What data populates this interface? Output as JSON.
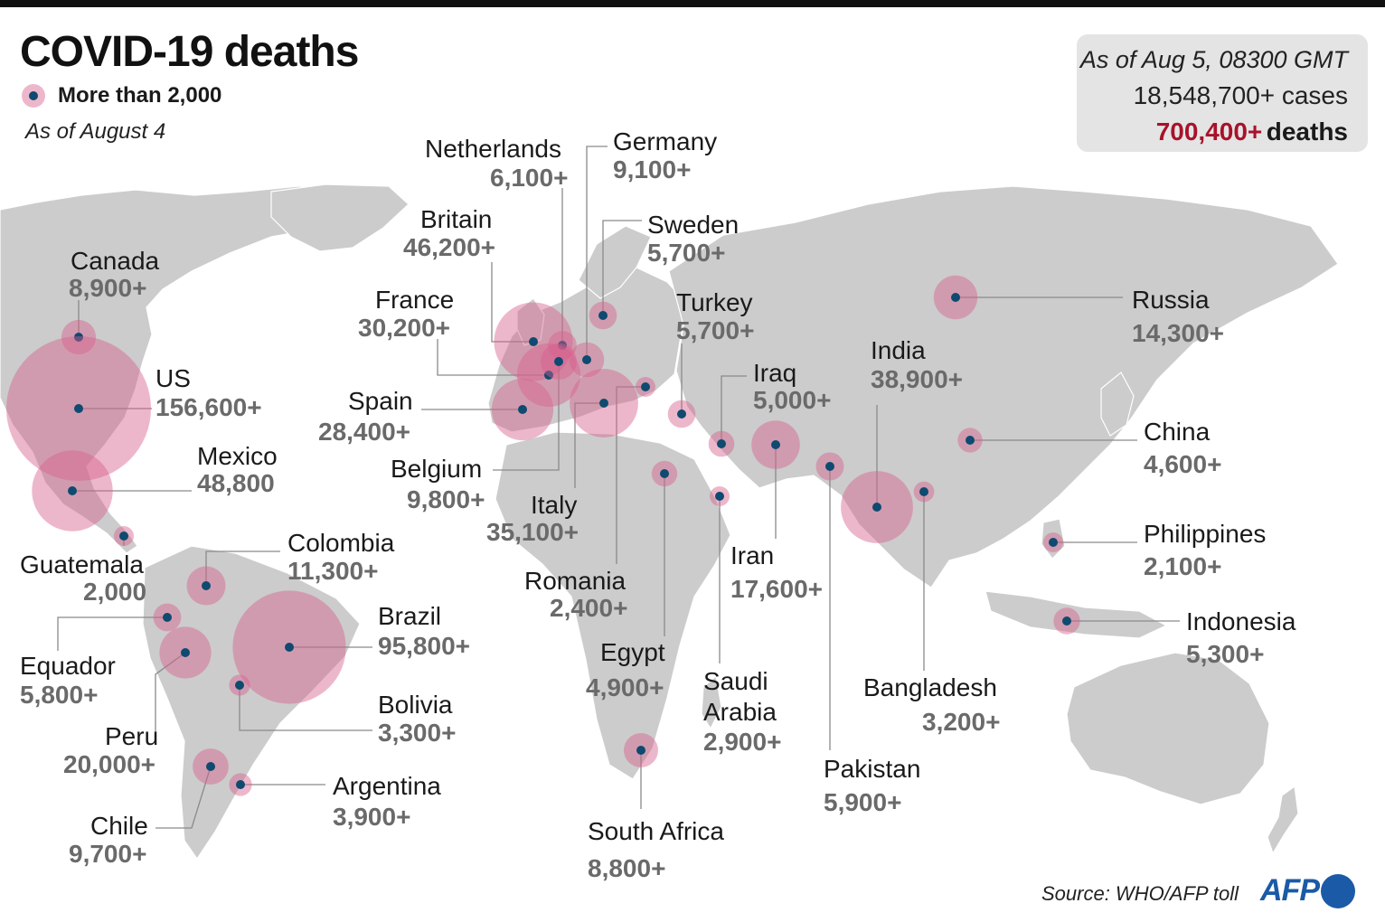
{
  "title": "COVID-19 deaths",
  "legend": {
    "label": "More than 2,000"
  },
  "as_of": "As of August 4",
  "totals": {
    "as_of": "As of Aug 5, 08300 GMT",
    "cases": "18,548,700+ cases",
    "deaths_number": "700,400+",
    "deaths_word": "deaths"
  },
  "source": "Source: WHO/AFP toll",
  "logo_text": "AFP",
  "colors": {
    "bubble": "#d8608c",
    "dot": "#0f4a70",
    "land": "#cccccc",
    "deaths_highlight": "#a8122a",
    "value_text": "#6a6a6a",
    "logo": "#1b5aa6"
  },
  "countries": [
    {
      "id": "canada",
      "name": "Canada",
      "deaths": "8,900+",
      "deaths_count": 8900
    },
    {
      "id": "us",
      "name": "US",
      "deaths": "156,600+",
      "deaths_count": 156600
    },
    {
      "id": "mexico",
      "name": "Mexico",
      "deaths": "48,800",
      "deaths_count": 48800
    },
    {
      "id": "guatemala",
      "name": "Guatemala",
      "deaths": "2,000",
      "deaths_count": 2000
    },
    {
      "id": "colombia",
      "name": "Colombia",
      "deaths": "11,300+",
      "deaths_count": 11300
    },
    {
      "id": "equador",
      "name": "Equador",
      "deaths": "5,800+",
      "deaths_count": 5800
    },
    {
      "id": "brazil",
      "name": "Brazil",
      "deaths": "95,800+",
      "deaths_count": 95800
    },
    {
      "id": "peru",
      "name": "Peru",
      "deaths": "20,000+",
      "deaths_count": 20000
    },
    {
      "id": "bolivia",
      "name": "Bolivia",
      "deaths": "3,300+",
      "deaths_count": 3300
    },
    {
      "id": "chile",
      "name": "Chile",
      "deaths": "9,700+",
      "deaths_count": 9700
    },
    {
      "id": "argentina",
      "name": "Argentina",
      "deaths": "3,900+",
      "deaths_count": 3900
    },
    {
      "id": "netherlands",
      "name": "Netherlands",
      "deaths": "6,100+",
      "deaths_count": 6100
    },
    {
      "id": "germany",
      "name": "Germany",
      "deaths": "9,100+",
      "deaths_count": 9100
    },
    {
      "id": "britain",
      "name": "Britain",
      "deaths": "46,200+",
      "deaths_count": 46200
    },
    {
      "id": "sweden",
      "name": "Sweden",
      "deaths": "5,700+",
      "deaths_count": 5700
    },
    {
      "id": "france",
      "name": "France",
      "deaths": "30,200+",
      "deaths_count": 30200
    },
    {
      "id": "turkey",
      "name": "Turkey",
      "deaths": "5,700+",
      "deaths_count": 5700
    },
    {
      "id": "spain",
      "name": "Spain",
      "deaths": "28,400+",
      "deaths_count": 28400
    },
    {
      "id": "belgium",
      "name": "Belgium",
      "deaths": "9,800+",
      "deaths_count": 9800
    },
    {
      "id": "italy",
      "name": "Italy",
      "deaths": "35,100+",
      "deaths_count": 35100
    },
    {
      "id": "romania",
      "name": "Romania",
      "deaths": "2,400+",
      "deaths_count": 2400
    },
    {
      "id": "egypt",
      "name": "Egypt",
      "deaths": "4,900+",
      "deaths_count": 4900
    },
    {
      "id": "south-africa",
      "name": "South Africa",
      "deaths": "8,800+",
      "deaths_count": 8800
    },
    {
      "id": "iraq",
      "name": "Iraq",
      "deaths": "5,000+",
      "deaths_count": 5000
    },
    {
      "id": "iran",
      "name": "Iran",
      "deaths": "17,600+",
      "deaths_count": 17600
    },
    {
      "id": "saudi-arabia",
      "name_line1": "Saudi",
      "name_line2": "Arabia",
      "deaths": "2,900+",
      "deaths_count": 2900
    },
    {
      "id": "india",
      "name": "India",
      "deaths": "38,900+",
      "deaths_count": 38900
    },
    {
      "id": "pakistan",
      "name": "Pakistan",
      "deaths": "5,900+",
      "deaths_count": 5900
    },
    {
      "id": "bangladesh",
      "name": "Bangladesh",
      "deaths": "3,200+",
      "deaths_count": 3200
    },
    {
      "id": "russia",
      "name": "Russia",
      "deaths": "14,300+",
      "deaths_count": 14300
    },
    {
      "id": "china",
      "name": "China",
      "deaths": "4,600+",
      "deaths_count": 4600
    },
    {
      "id": "philippines",
      "name": "Philippines",
      "deaths": "2,100+",
      "deaths_count": 2100
    },
    {
      "id": "indonesia",
      "name": "Indonesia",
      "deaths": "5,300+",
      "deaths_count": 5300
    }
  ]
}
